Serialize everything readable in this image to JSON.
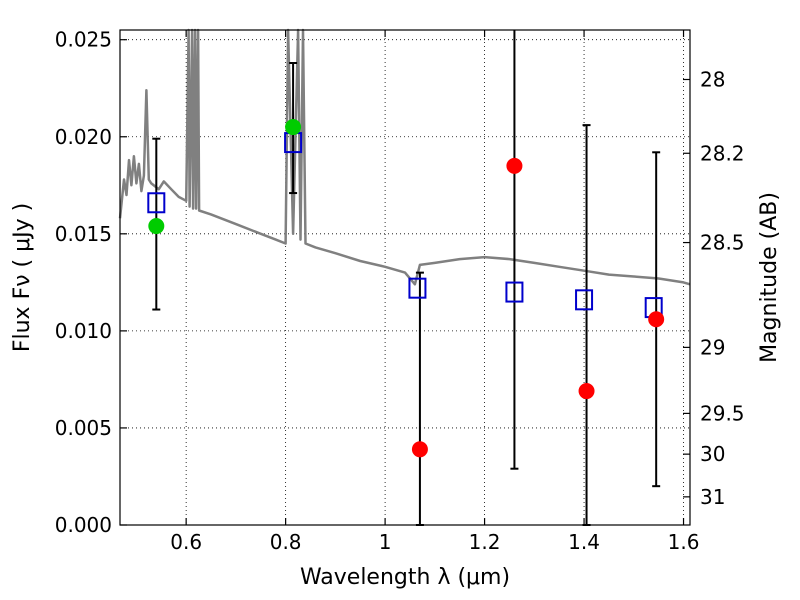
{
  "chart_data": {
    "type": "scatter",
    "xlabel": "Wavelength  λ (μm)",
    "ylabel": "Flux  Fν  ( μJy )",
    "ylabel_right": "Magnitude (AB)",
    "xlim": [
      0.467,
      1.613
    ],
    "ylim": [
      0.0,
      0.0255
    ],
    "grid": true,
    "x_ticks": [
      0.6,
      0.8,
      1.0,
      1.2,
      1.4,
      1.6
    ],
    "x_tick_labels": [
      "0.6",
      "0.8",
      "1",
      "1.2",
      "1.4",
      "1.6"
    ],
    "y_ticks": [
      0.0,
      0.005,
      0.01,
      0.015,
      0.02,
      0.025
    ],
    "y_tick_labels": [
      "0.000",
      "0.005",
      "0.010",
      "0.015",
      "0.020",
      "0.025"
    ],
    "right_ticks": [
      {
        "label": "28",
        "flux": 0.02295
      },
      {
        "label": "28.2",
        "flux": 0.01915
      },
      {
        "label": "28.5",
        "flux": 0.01455
      },
      {
        "label": "29",
        "flux": 0.00915
      },
      {
        "label": "29.5",
        "flux": 0.00575
      },
      {
        "label": "30",
        "flux": 0.00365
      },
      {
        "label": "31",
        "flux": 0.00145
      }
    ],
    "observed_points": [
      {
        "x": 0.54,
        "y": 0.0154,
        "color": "#00cc00"
      },
      {
        "x": 0.815,
        "y": 0.0205,
        "color": "#00cc00"
      },
      {
        "x": 1.07,
        "y": 0.0039,
        "color": "#ff0000"
      },
      {
        "x": 1.26,
        "y": 0.0185,
        "color": "#ff0000"
      },
      {
        "x": 1.405,
        "y": 0.0069,
        "color": "#ff0000"
      },
      {
        "x": 1.545,
        "y": 0.0106,
        "color": "#ff0000"
      }
    ],
    "error_bars": [
      {
        "x": 0.54,
        "low": 0.0111,
        "high": 0.0199
      },
      {
        "x": 0.815,
        "low": 0.0171,
        "high": 0.0238
      },
      {
        "x": 1.07,
        "low": 0.0,
        "high": 0.013
      },
      {
        "x": 1.26,
        "low": 0.0029,
        "high": 0.026
      },
      {
        "x": 1.405,
        "low": 0.0,
        "high": 0.0206
      },
      {
        "x": 1.545,
        "low": 0.002,
        "high": 0.0192
      }
    ],
    "model_points": [
      {
        "x": 0.54,
        "y": 0.0166
      },
      {
        "x": 0.815,
        "y": 0.0197
      },
      {
        "x": 1.065,
        "y": 0.0122
      },
      {
        "x": 1.26,
        "y": 0.012
      },
      {
        "x": 1.4,
        "y": 0.0116
      },
      {
        "x": 1.54,
        "y": 0.0112
      }
    ],
    "model_spectrum": [
      [
        0.467,
        0.0158
      ],
      [
        0.475,
        0.0178
      ],
      [
        0.48,
        0.017
      ],
      [
        0.485,
        0.0188
      ],
      [
        0.49,
        0.0175
      ],
      [
        0.495,
        0.019
      ],
      [
        0.5,
        0.0176
      ],
      [
        0.505,
        0.0186
      ],
      [
        0.51,
        0.0172
      ],
      [
        0.515,
        0.018
      ],
      [
        0.52,
        0.0224
      ],
      [
        0.525,
        0.0178
      ],
      [
        0.53,
        0.0176
      ],
      [
        0.545,
        0.0173
      ],
      [
        0.555,
        0.0177
      ],
      [
        0.57,
        0.0173
      ],
      [
        0.585,
        0.0169
      ],
      [
        0.6,
        0.0167
      ],
      [
        0.605,
        0.026
      ],
      [
        0.607,
        0.0164
      ],
      [
        0.612,
        0.026
      ],
      [
        0.614,
        0.0163
      ],
      [
        0.618,
        0.026
      ],
      [
        0.62,
        0.0163
      ],
      [
        0.624,
        0.026
      ],
      [
        0.626,
        0.0162
      ],
      [
        0.65,
        0.016
      ],
      [
        0.7,
        0.0155
      ],
      [
        0.75,
        0.015
      ],
      [
        0.78,
        0.0147
      ],
      [
        0.8,
        0.0145
      ],
      [
        0.805,
        0.026
      ],
      [
        0.815,
        0.015
      ],
      [
        0.825,
        0.026
      ],
      [
        0.83,
        0.0147
      ],
      [
        0.835,
        0.026
      ],
      [
        0.84,
        0.0145
      ],
      [
        0.86,
        0.0143
      ],
      [
        0.9,
        0.014
      ],
      [
        0.95,
        0.0136
      ],
      [
        1.0,
        0.0133
      ],
      [
        1.04,
        0.013
      ],
      [
        1.06,
        0.0124
      ],
      [
        1.07,
        0.0134
      ],
      [
        1.1,
        0.0135
      ],
      [
        1.15,
        0.0137
      ],
      [
        1.2,
        0.0138
      ],
      [
        1.25,
        0.0137
      ],
      [
        1.3,
        0.0135
      ],
      [
        1.35,
        0.0133
      ],
      [
        1.4,
        0.0131
      ],
      [
        1.45,
        0.0129
      ],
      [
        1.5,
        0.0128
      ],
      [
        1.55,
        0.0127
      ],
      [
        1.6,
        0.0125
      ],
      [
        1.613,
        0.0124
      ]
    ]
  }
}
